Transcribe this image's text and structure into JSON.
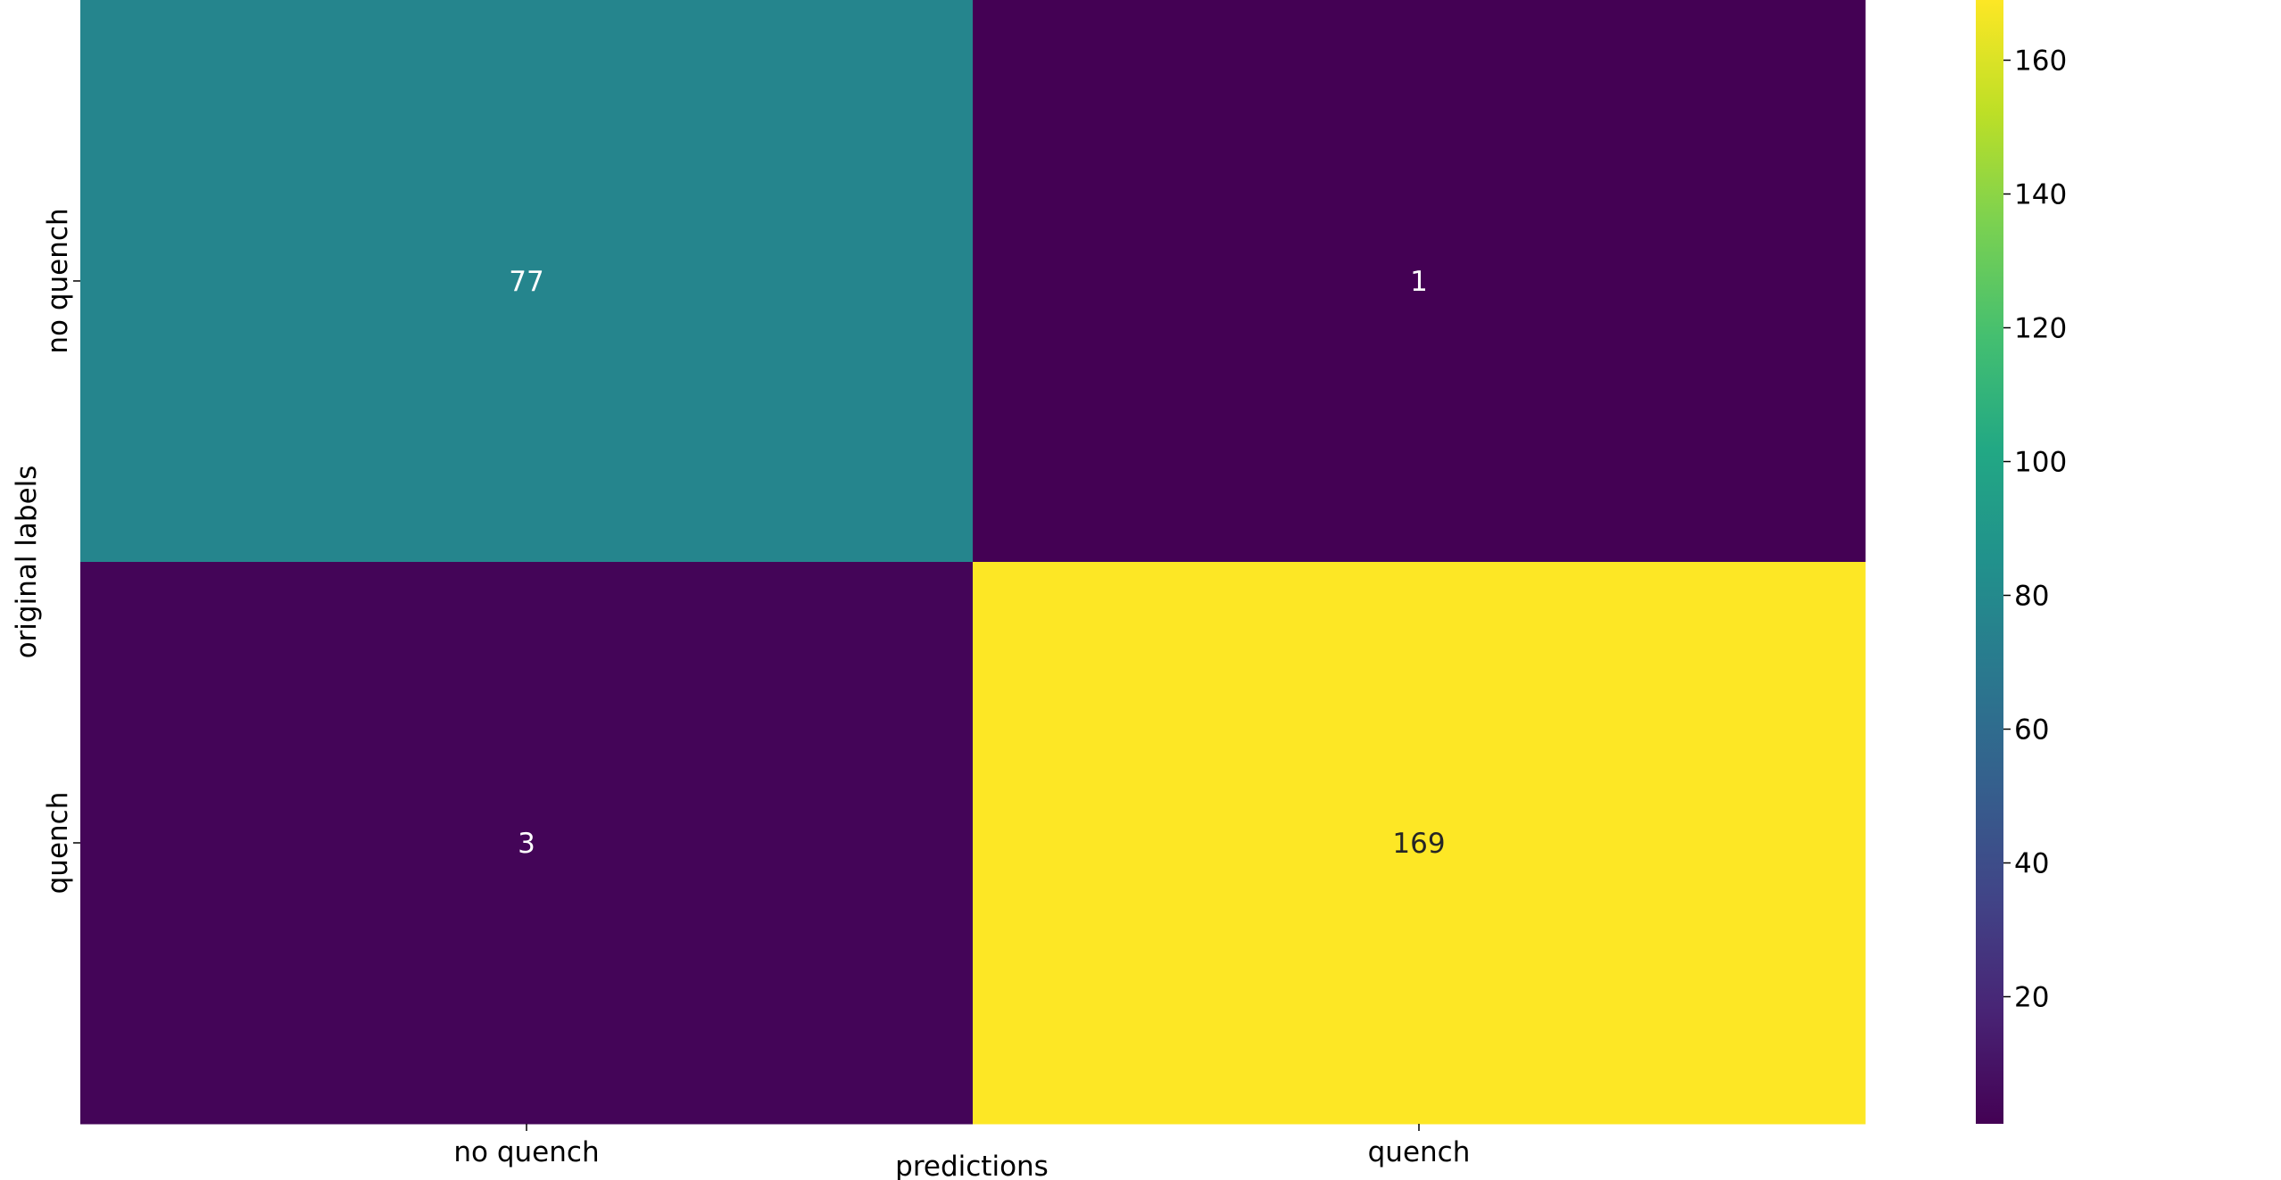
{
  "chart_data": {
    "type": "heatmap",
    "title": "",
    "xlabel": "predictions",
    "ylabel": "original labels",
    "x_categories": [
      "no quench",
      "quench"
    ],
    "y_categories": [
      "no quench",
      "quench"
    ],
    "values": [
      [
        77,
        1
      ],
      [
        3,
        169
      ]
    ],
    "annotations": [
      "77",
      "1",
      "3",
      "169"
    ],
    "colormap": "viridis",
    "colorbar": {
      "vmin": 1,
      "vmax": 169,
      "ticks": [
        20,
        40,
        60,
        80,
        100,
        120,
        140,
        160
      ],
      "tick_labels": [
        "20",
        "40",
        "60",
        "80",
        "100",
        "120",
        "140",
        "160"
      ]
    },
    "grid": false,
    "legend": "colorbar at right"
  }
}
